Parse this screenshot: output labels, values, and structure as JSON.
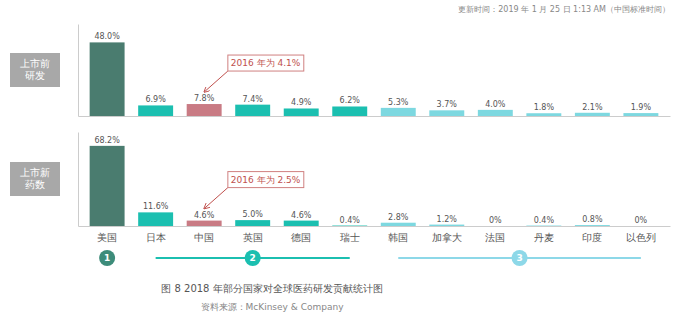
{
  "chart_data": [
    {
      "type": "bar",
      "ylabel": "上市前\n研发",
      "categories": [
        "美国",
        "日本",
        "中国",
        "英国",
        "德国",
        "瑞士",
        "韩国",
        "加拿大",
        "法国",
        "丹麦",
        "印度",
        "以色列"
      ],
      "values": [
        48.0,
        6.9,
        7.8,
        7.4,
        4.9,
        6.2,
        5.3,
        3.7,
        4.0,
        1.8,
        2.1,
        1.9
      ],
      "value_labels": [
        "48.0%",
        "6.9%",
        "7.8%",
        "7.4%",
        "4.9%",
        "6.2%",
        "5.3%",
        "3.7%",
        "4.0%",
        "1.8%",
        "2.1%",
        "1.9%"
      ],
      "colors": [
        "#4a7c6f",
        "#1bbfb0",
        "#c97b84",
        "#1bbfb0",
        "#1bbfb0",
        "#1bbfb0",
        "#7dd8e0",
        "#7dd8e0",
        "#7dd8e0",
        "#7dd8e0",
        "#7dd8e0",
        "#7dd8e0"
      ],
      "ylim": [
        0,
        60
      ],
      "data_labels": true,
      "tick_labels": false,
      "annotations": [
        {
          "text": "2016 年为 4.1%",
          "category": "中国"
        }
      ],
      "timestamp": "更新时间：2019 年 1 月 25 日 1:13 AM（中国标准时间）"
    },
    {
      "type": "bar",
      "ylabel": "上市新\n药数",
      "categories": [
        "美国",
        "日本",
        "中国",
        "英国",
        "德国",
        "瑞士",
        "韩国",
        "加拿大",
        "法国",
        "丹麦",
        "印度",
        "以色列"
      ],
      "values": [
        68.2,
        11.6,
        4.6,
        5.0,
        4.6,
        0.4,
        2.8,
        1.2,
        0.0,
        0.4,
        0.8,
        0.0
      ],
      "value_labels": [
        "68.2%",
        "11.6%",
        "4.6%",
        "5.0%",
        "4.6%",
        "0.4%",
        "2.8%",
        "1.2%",
        "0%",
        "0.4%",
        "0.8%",
        "0%"
      ],
      "colors": [
        "#4a7c6f",
        "#1bbfb0",
        "#c97b84",
        "#1bbfb0",
        "#1bbfb0",
        "#1bbfb0",
        "#7dd8e0",
        "#7dd8e0",
        "#7dd8e0",
        "#7dd8e0",
        "#7dd8e0",
        "#7dd8e0"
      ],
      "ylim": [
        0,
        80
      ],
      "data_labels": true,
      "tick_labels": "x",
      "annotations": [
        {
          "text": "2016 年为 2.5%",
          "category": "中国"
        }
      ],
      "groups": [
        {
          "name": "1",
          "color": "#3d8c7a",
          "from": "美国",
          "to": "美国"
        },
        {
          "name": "2",
          "color": "#1bbfb0",
          "from": "日本",
          "to": "瑞士"
        },
        {
          "name": "3",
          "color": "#8dd8e8",
          "from": "韩国",
          "to": "以色列"
        }
      ],
      "title": "图 8  2018 年部分国家对全球医药研发贡献统计图",
      "subtitle": "资料来源：McKinsey & Company"
    }
  ]
}
